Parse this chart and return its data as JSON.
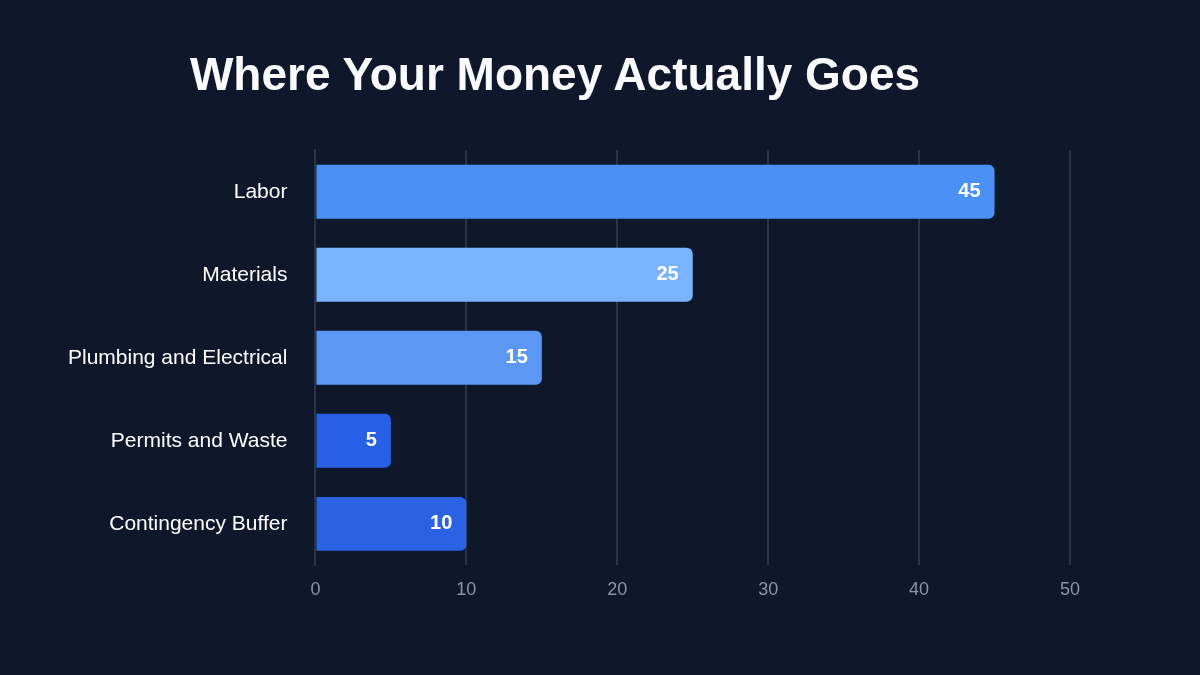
{
  "chart_data": {
    "type": "bar",
    "orientation": "horizontal",
    "title": "Where Your Money Actually Goes",
    "categories": [
      "Labor",
      "Materials",
      "Plumbing and Electrical",
      "Permits and Waste",
      "Contingency Buffer"
    ],
    "values": [
      45,
      25,
      15,
      5,
      10
    ],
    "colors": [
      "#4a90f5",
      "#78b4fc",
      "#5a98f3",
      "#2760e6",
      "#2b62e4"
    ],
    "xlim": [
      0,
      50
    ],
    "xticks": [
      0,
      10,
      20,
      30,
      40,
      50
    ],
    "grid": "x",
    "data_labels": true
  }
}
